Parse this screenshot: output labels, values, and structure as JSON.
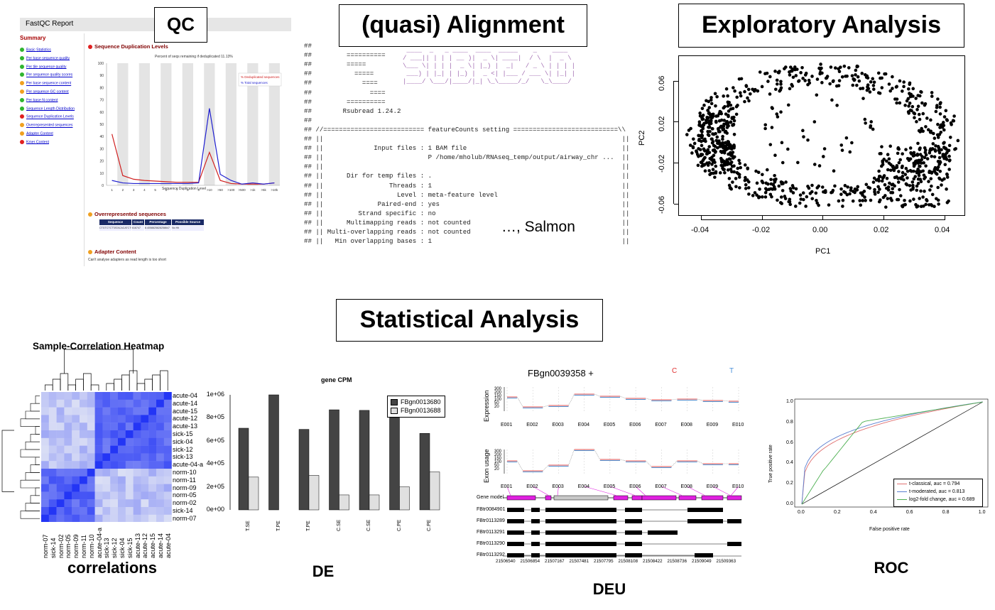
{
  "labels": {
    "qc": "QC",
    "alignment": "(quasi) Alignment",
    "exploratory": "Exploratory Analysis",
    "statistical": "Statistical Analysis",
    "salmon": "…, Salmon",
    "correlations": "correlations",
    "de": "DE",
    "deu": "DEU",
    "roc": "ROC"
  },
  "colors": {
    "grey_bar": "#e6e6e6",
    "heat_blue": "#2e3cf0",
    "magenta": "#e020e0",
    "red": "#d62728",
    "blue": "#1f3bd6"
  },
  "fastqc": {
    "title": "FastQC Report",
    "summary": "Summary",
    "modules": [
      {
        "label": "Basic Statistics",
        "status": "pass"
      },
      {
        "label": "Per base sequence quality",
        "status": "pass"
      },
      {
        "label": "Per tile sequence quality",
        "status": "pass"
      },
      {
        "label": "Per sequence quality scores",
        "status": "pass"
      },
      {
        "label": "Per base sequence content",
        "status": "warn"
      },
      {
        "label": "Per sequence GC content",
        "status": "warn"
      },
      {
        "label": "Per base N content",
        "status": "pass"
      },
      {
        "label": "Sequence Length Distribution",
        "status": "pass"
      },
      {
        "label": "Sequence Duplication Levels",
        "status": "fail"
      },
      {
        "label": "Overrepresented sequences",
        "status": "warn"
      },
      {
        "label": "Adapter Content",
        "status": "warn"
      },
      {
        "label": "Kmer Content",
        "status": "fail"
      }
    ],
    "dup_heading": "Sequence Duplication Levels",
    "dup_subtitle": "Percent of seqs remaining if deduplicated 11.13%",
    "dup_legend": [
      "% Deduplicated sequences",
      "% Total sequences"
    ],
    "dup_xlabel": "Sequence Duplication Level",
    "dup_yticks": [
      "100",
      "90",
      "80",
      "70",
      "60",
      "50",
      "40",
      "30",
      "20",
      "10",
      "0"
    ],
    "dup_xticks": [
      "1",
      "2",
      "3",
      "4",
      "5",
      "6",
      "7",
      "8",
      "9",
      ">10",
      ">50",
      ">100",
      ">500",
      ">1k",
      ">5k",
      ">10k"
    ],
    "dup_red": [
      42,
      8,
      5,
      4,
      3.5,
      3,
      2.5,
      2.5,
      2.5,
      27,
      4,
      1.5,
      1,
      1,
      1,
      2
    ],
    "dup_blue": [
      4,
      2,
      1.5,
      1.5,
      1.5,
      1.5,
      1.5,
      1.5,
      2,
      63,
      9,
      4,
      1,
      2,
      1,
      2
    ],
    "over_heading": "Overrepresented sequences",
    "over_headers": [
      "Sequence",
      "Count",
      "Percentage",
      "Possible Source"
    ],
    "over_row": [
      "CTGTCTCTTATACACATCTC",
      "616747",
      "8.4058825828258647",
      "No Hit"
    ],
    "adapter_heading": "Adapter Content",
    "adapter_note": "Can't analyse adapters as read length is too short"
  },
  "code_lines": [
    "##",
    "##         ==========",
    "##         =====",
    "##           =====",
    "##             ====",
    "##               ====",
    "##         ==========",
    "##        Rsubread 1.24.2",
    "##",
    "## //========================== featureCounts setting ===========================\\\\",
    "## ||                                                                             ||",
    "## ||             Input files : 1 BAM file                                        ||",
    "## ||                           P /home/mholub/RNAseq_temp/output/airway_chr ...  ||",
    "## ||                                                                             ||",
    "## ||      Dir for temp files : .                                                 ||",
    "## ||                 Threads : 1                                                 ||",
    "## ||                   Level : meta-feature level                                ||",
    "## ||              Paired-end : yes                                               ||",
    "## ||         Strand specific : no                                                ||",
    "## ||      Multimapping reads : not counted                                       ||",
    "## || Multi-overlapping reads : not counted                                       ||",
    "## ||   Min overlapping bases : 1                                                 ||"
  ],
  "pca": {
    "xlabel": "PC1",
    "ylabel": "PC2",
    "xticks": [
      "-0.04",
      "-0.02",
      "0.00",
      "0.02",
      "0.04"
    ],
    "yticks": [
      "0.06",
      "0.02",
      "-0.02",
      "-0.06"
    ]
  },
  "heatmap": {
    "title": "Sample-Correlation Heatmap",
    "rows": [
      "acute-04",
      "acute-14",
      "acute-15",
      "acute-12",
      "acute-13",
      "sick-15",
      "sick-04",
      "sick-12",
      "sick-13",
      "acute-04-a",
      "norm-10",
      "norm-11",
      "norm-09",
      "norm-05",
      "norm-02",
      "sick-14",
      "norm-07"
    ],
    "cols": [
      "norm-07",
      "sick-14",
      "norm-02",
      "norm-05",
      "norm-09",
      "norm-11",
      "norm-10",
      "acute-04-a",
      "sick-13",
      "sick-12",
      "sick-04",
      "sick-15",
      "acute-13",
      "acute-12",
      "acute-15",
      "acute-14",
      "acute-04"
    ]
  },
  "de_chart": {
    "title": "gene CPM",
    "categories": [
      "T.SE",
      "T.PE",
      "T.PE",
      "C.SE",
      "C.SE",
      "C.PE",
      "C.PE"
    ],
    "series": [
      {
        "name": "FBgn0013680",
        "values": [
          710000,
          1000000,
          700000,
          870000,
          865000,
          800000,
          665000
        ]
      },
      {
        "name": "FBgn0013688",
        "values": [
          285000,
          0,
          300000,
          130000,
          130000,
          200000,
          330000
        ]
      }
    ],
    "yticks": [
      "1e+06",
      "8e+05",
      "6e+05",
      "4e+05",
      "2e+05",
      "0e+00"
    ]
  },
  "deu": {
    "gene": "FBgn0039358 +",
    "cond_c": "C",
    "cond_t": "T",
    "ylabel_top": "Expression",
    "ylabel_mid": "Exon usage",
    "yticks": [
      "300",
      "200",
      "150",
      "100",
      "50",
      "20"
    ],
    "exons": [
      "E001",
      "E002",
      "E003",
      "E004",
      "E005",
      "E006",
      "E007",
      "E008",
      "E009",
      "E010"
    ],
    "gene_model": "Gene model",
    "transcripts": [
      "FBtr0084901",
      "FBtr0113289",
      "FBtr0113291",
      "FBtr0113290",
      "FBtr0113292"
    ],
    "coords": [
      "21506540",
      "21506854",
      "21507167",
      "21507481",
      "21507795",
      "21508108",
      "21508422",
      "21508736",
      "21509049",
      "21509363"
    ]
  },
  "roc": {
    "xlabel": "False positive rate",
    "ylabel": "True positive rate",
    "ticks": [
      "0.0",
      "0.2",
      "0.4",
      "0.6",
      "0.8",
      "1.0"
    ],
    "legend": [
      "t-classical, auc = 0.794",
      "t-moderated, auc = 0.813",
      "log2-fold change, auc = 0.689"
    ]
  }
}
